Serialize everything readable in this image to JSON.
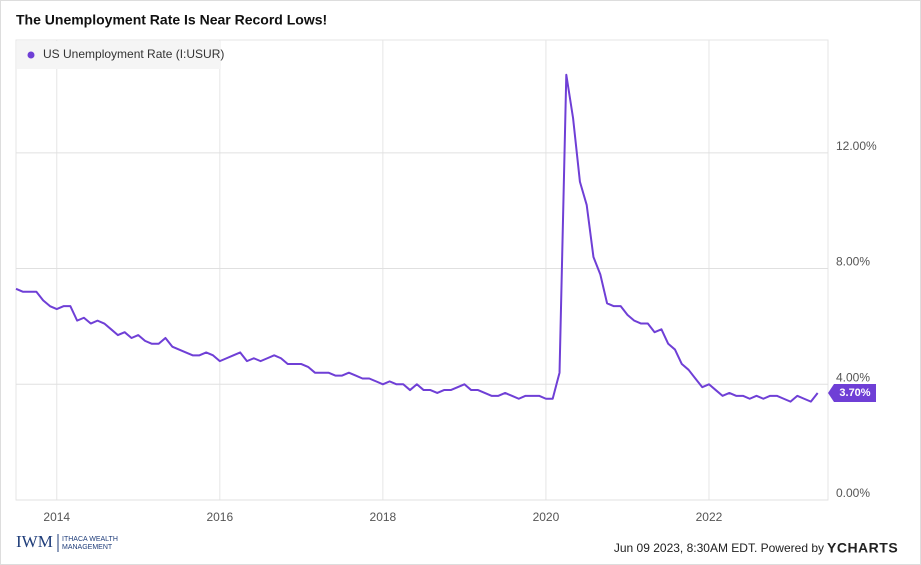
{
  "chart_data": {
    "type": "line",
    "title": "The Unemployment Rate Is Near Record Lows!",
    "x": [
      2013.5,
      2013.583,
      2013.667,
      2013.75,
      2013.833,
      2013.917,
      2014,
      2014.083,
      2014.167,
      2014.25,
      2014.333,
      2014.417,
      2014.5,
      2014.583,
      2014.667,
      2014.75,
      2014.833,
      2014.917,
      2015,
      2015.083,
      2015.167,
      2015.25,
      2015.333,
      2015.417,
      2015.5,
      2015.583,
      2015.667,
      2015.75,
      2015.833,
      2015.917,
      2016,
      2016.083,
      2016.167,
      2016.25,
      2016.333,
      2016.417,
      2016.5,
      2016.583,
      2016.667,
      2016.75,
      2016.833,
      2016.917,
      2017,
      2017.083,
      2017.167,
      2017.25,
      2017.333,
      2017.417,
      2017.5,
      2017.583,
      2017.667,
      2017.75,
      2017.833,
      2017.917,
      2018,
      2018.083,
      2018.167,
      2018.25,
      2018.333,
      2018.417,
      2018.5,
      2018.583,
      2018.667,
      2018.75,
      2018.833,
      2018.917,
      2019,
      2019.083,
      2019.167,
      2019.25,
      2019.333,
      2019.417,
      2019.5,
      2019.583,
      2019.667,
      2019.75,
      2019.833,
      2019.917,
      2020,
      2020.083,
      2020.167,
      2020.25,
      2020.333,
      2020.417,
      2020.5,
      2020.583,
      2020.667,
      2020.75,
      2020.833,
      2020.917,
      2021,
      2021.083,
      2021.167,
      2021.25,
      2021.333,
      2021.417,
      2021.5,
      2021.583,
      2021.667,
      2021.75,
      2021.833,
      2021.917,
      2022,
      2022.083,
      2022.167,
      2022.25,
      2022.333,
      2022.417,
      2022.5,
      2022.583,
      2022.667,
      2022.75,
      2022.833,
      2022.917,
      2023,
      2023.083,
      2023.167,
      2023.25,
      2023.333
    ],
    "series": [
      {
        "name": "US Unemployment Rate (I:USUR)",
        "color": "#6f3fd6",
        "values": [
          7.3,
          7.2,
          7.2,
          7.2,
          6.9,
          6.7,
          6.6,
          6.7,
          6.7,
          6.2,
          6.3,
          6.1,
          6.2,
          6.1,
          5.9,
          5.7,
          5.8,
          5.6,
          5.7,
          5.5,
          5.4,
          5.4,
          5.6,
          5.3,
          5.2,
          5.1,
          5.0,
          5.0,
          5.1,
          5.0,
          4.8,
          4.9,
          5.0,
          5.1,
          4.8,
          4.9,
          4.8,
          4.9,
          5.0,
          4.9,
          4.7,
          4.7,
          4.7,
          4.6,
          4.4,
          4.4,
          4.4,
          4.3,
          4.3,
          4.4,
          4.3,
          4.2,
          4.2,
          4.1,
          4.0,
          4.1,
          4.0,
          4.0,
          3.8,
          4.0,
          3.8,
          3.8,
          3.7,
          3.8,
          3.8,
          3.9,
          4.0,
          3.8,
          3.8,
          3.7,
          3.6,
          3.6,
          3.7,
          3.6,
          3.5,
          3.6,
          3.6,
          3.6,
          3.5,
          3.5,
          4.4,
          14.7,
          13.2,
          11.0,
          10.2,
          8.4,
          7.8,
          6.8,
          6.7,
          6.7,
          6.4,
          6.2,
          6.1,
          6.1,
          5.8,
          5.9,
          5.4,
          5.2,
          4.7,
          4.5,
          4.2,
          3.9,
          4.0,
          3.8,
          3.6,
          3.7,
          3.6,
          3.6,
          3.5,
          3.6,
          3.5,
          3.6,
          3.6,
          3.5,
          3.4,
          3.6,
          3.5,
          3.4,
          3.7
        ],
        "value_labels": [
          null,
          null,
          null,
          null,
          null,
          null,
          null,
          null,
          null,
          null,
          null,
          null,
          null,
          null,
          null,
          null,
          null,
          null,
          null,
          null,
          null,
          null,
          null,
          null,
          null,
          null,
          null,
          null,
          null,
          null,
          null,
          null,
          null,
          null,
          null,
          null,
          null,
          null,
          null,
          null,
          null,
          null,
          null,
          null,
          null,
          null,
          null,
          null,
          null,
          null,
          null,
          null,
          null,
          null,
          null,
          null,
          null,
          null,
          null,
          null,
          null,
          null,
          null,
          null,
          null,
          null,
          null,
          null,
          null,
          null,
          null,
          null,
          null,
          null,
          null,
          null,
          null,
          null,
          null,
          null,
          null,
          null,
          null,
          null,
          null,
          null,
          null,
          null,
          null,
          null,
          null,
          null,
          null,
          null,
          null,
          null,
          null,
          null,
          null,
          null,
          null,
          null,
          null,
          null,
          null,
          null,
          null,
          null,
          null,
          null,
          null,
          null,
          null,
          null,
          null,
          null,
          null,
          null,
          "3.70%"
        ]
      }
    ],
    "xlim": [
      2013.5,
      2023.46
    ],
    "xticks": [
      2014,
      2016,
      2018,
      2020,
      2022
    ],
    "ylim": [
      0,
      15.9
    ],
    "yticks": [
      {
        "value": 0,
        "label": "0.00%"
      },
      {
        "value": 4,
        "label": "4.00%"
      },
      {
        "value": 8,
        "label": "8.00%"
      },
      {
        "value": 12,
        "label": "12.00%"
      }
    ],
    "grid": true,
    "legend": "top-left"
  },
  "footer": {
    "logo": "IWM",
    "logo_line1": "ITHACA WEALTH",
    "logo_line2": "MANAGEMENT",
    "credit": "Jun 09 2023, 8:30AM EDT. Powered by",
    "brand": "YCHARTS"
  }
}
